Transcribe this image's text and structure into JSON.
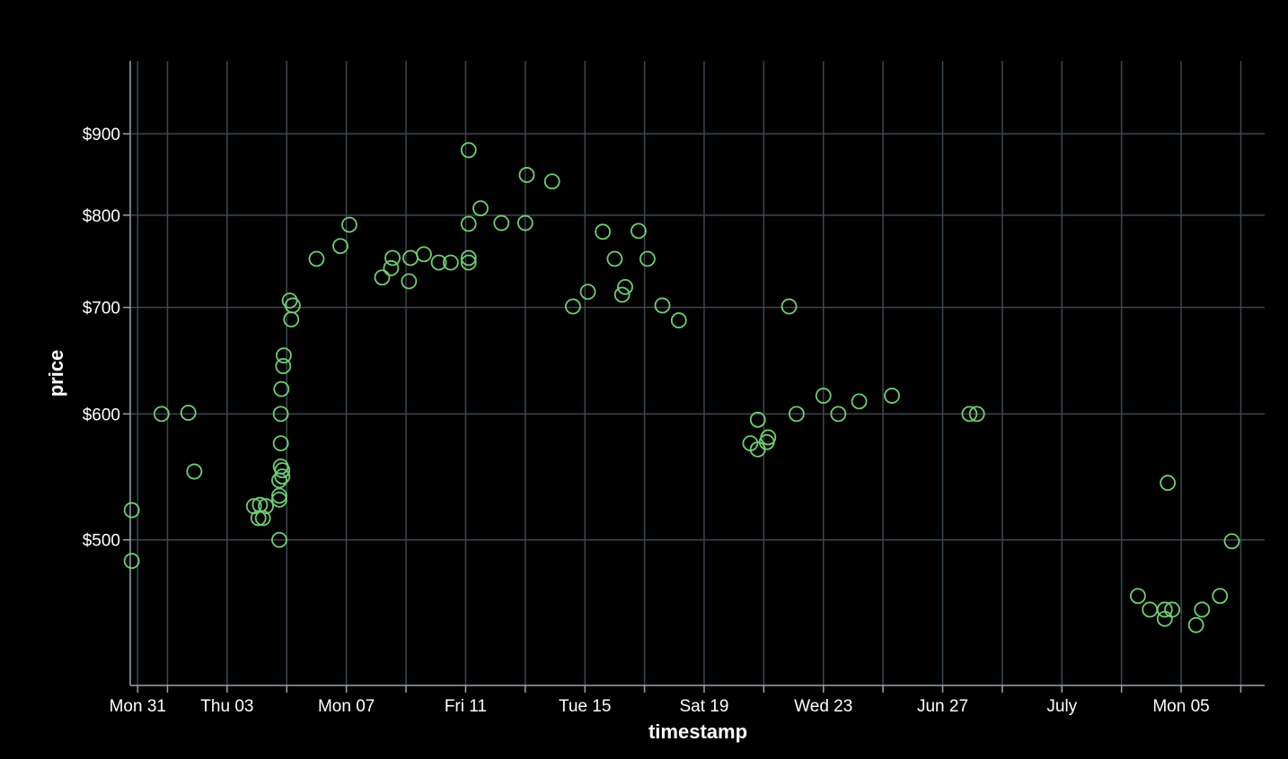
{
  "chart_data": {
    "type": "scatter",
    "xlabel": "timestamp",
    "ylabel": "price",
    "grid": true,
    "legend": "none",
    "x_ticks": [
      {
        "label": "Mon 31",
        "day": 0
      },
      {
        "label": "Thu 03",
        "day": 3
      },
      {
        "label": "Mon 07",
        "day": 7
      },
      {
        "label": "Fri 11",
        "day": 11
      },
      {
        "label": "Tue 15",
        "day": 15
      },
      {
        "label": "Sat 19",
        "day": 19
      },
      {
        "label": "Wed 23",
        "day": 23
      },
      {
        "label": "Jun 27",
        "day": 27
      },
      {
        "label": "July",
        "day": 31
      },
      {
        "label": "Mon 05",
        "day": 35
      }
    ],
    "x_minor_ticks": [
      1,
      5,
      9,
      13,
      17,
      21,
      25,
      29,
      33,
      37
    ],
    "xlim": [
      -0.25,
      37.8
    ],
    "y_ticks": [
      {
        "label": "$500",
        "value": 500
      },
      {
        "label": "$600",
        "value": 600
      },
      {
        "label": "$700",
        "value": 700
      },
      {
        "label": "$800",
        "value": 800
      },
      {
        "label": "$900",
        "value": 900
      }
    ],
    "ylim": [
      405,
      1000
    ],
    "yscale": "log",
    "point_color": "#6ecf73",
    "points": [
      {
        "x": -0.2,
        "y": 522
      },
      {
        "x": -0.2,
        "y": 485
      },
      {
        "x": 0.8,
        "y": 600
      },
      {
        "x": 1.7,
        "y": 601
      },
      {
        "x": 1.9,
        "y": 552
      },
      {
        "x": 3.9,
        "y": 525
      },
      {
        "x": 4.05,
        "y": 516
      },
      {
        "x": 4.1,
        "y": 526
      },
      {
        "x": 4.2,
        "y": 516
      },
      {
        "x": 4.3,
        "y": 525
      },
      {
        "x": 4.75,
        "y": 500
      },
      {
        "x": 4.75,
        "y": 545
      },
      {
        "x": 4.75,
        "y": 530
      },
      {
        "x": 4.75,
        "y": 533
      },
      {
        "x": 4.8,
        "y": 556
      },
      {
        "x": 4.8,
        "y": 575
      },
      {
        "x": 4.8,
        "y": 600
      },
      {
        "x": 4.82,
        "y": 622
      },
      {
        "x": 4.85,
        "y": 553
      },
      {
        "x": 4.85,
        "y": 548
      },
      {
        "x": 4.88,
        "y": 643
      },
      {
        "x": 4.9,
        "y": 653
      },
      {
        "x": 5.1,
        "y": 707
      },
      {
        "x": 5.15,
        "y": 688
      },
      {
        "x": 5.2,
        "y": 702
      },
      {
        "x": 6.0,
        "y": 751
      },
      {
        "x": 6.8,
        "y": 765
      },
      {
        "x": 7.1,
        "y": 789
      },
      {
        "x": 8.2,
        "y": 731
      },
      {
        "x": 8.5,
        "y": 741
      },
      {
        "x": 8.55,
        "y": 752
      },
      {
        "x": 9.1,
        "y": 727
      },
      {
        "x": 9.15,
        "y": 752
      },
      {
        "x": 9.6,
        "y": 756
      },
      {
        "x": 10.1,
        "y": 747
      },
      {
        "x": 10.5,
        "y": 747
      },
      {
        "x": 11.1,
        "y": 879
      },
      {
        "x": 11.1,
        "y": 790
      },
      {
        "x": 11.1,
        "y": 752
      },
      {
        "x": 11.1,
        "y": 747
      },
      {
        "x": 11.5,
        "y": 808
      },
      {
        "x": 12.2,
        "y": 791
      },
      {
        "x": 13.0,
        "y": 791
      },
      {
        "x": 13.05,
        "y": 848
      },
      {
        "x": 13.9,
        "y": 840
      },
      {
        "x": 14.6,
        "y": 701
      },
      {
        "x": 15.1,
        "y": 716
      },
      {
        "x": 15.6,
        "y": 781
      },
      {
        "x": 16.0,
        "y": 751
      },
      {
        "x": 16.25,
        "y": 713
      },
      {
        "x": 16.35,
        "y": 721
      },
      {
        "x": 16.8,
        "y": 782
      },
      {
        "x": 17.1,
        "y": 751
      },
      {
        "x": 17.6,
        "y": 702
      },
      {
        "x": 18.15,
        "y": 687
      },
      {
        "x": 20.55,
        "y": 575
      },
      {
        "x": 20.8,
        "y": 595
      },
      {
        "x": 20.8,
        "y": 570
      },
      {
        "x": 21.1,
        "y": 576
      },
      {
        "x": 21.15,
        "y": 580
      },
      {
        "x": 21.85,
        "y": 701
      },
      {
        "x": 22.1,
        "y": 600
      },
      {
        "x": 23.0,
        "y": 616
      },
      {
        "x": 23.5,
        "y": 600
      },
      {
        "x": 24.2,
        "y": 611
      },
      {
        "x": 25.3,
        "y": 616
      },
      {
        "x": 27.9,
        "y": 600
      },
      {
        "x": 28.15,
        "y": 600
      },
      {
        "x": 33.55,
        "y": 461
      },
      {
        "x": 33.95,
        "y": 452
      },
      {
        "x": 34.45,
        "y": 452
      },
      {
        "x": 34.45,
        "y": 446
      },
      {
        "x": 34.55,
        "y": 543
      },
      {
        "x": 34.7,
        "y": 452
      },
      {
        "x": 35.5,
        "y": 442
      },
      {
        "x": 35.7,
        "y": 452
      },
      {
        "x": 36.3,
        "y": 461
      },
      {
        "x": 36.7,
        "y": 499
      }
    ]
  }
}
